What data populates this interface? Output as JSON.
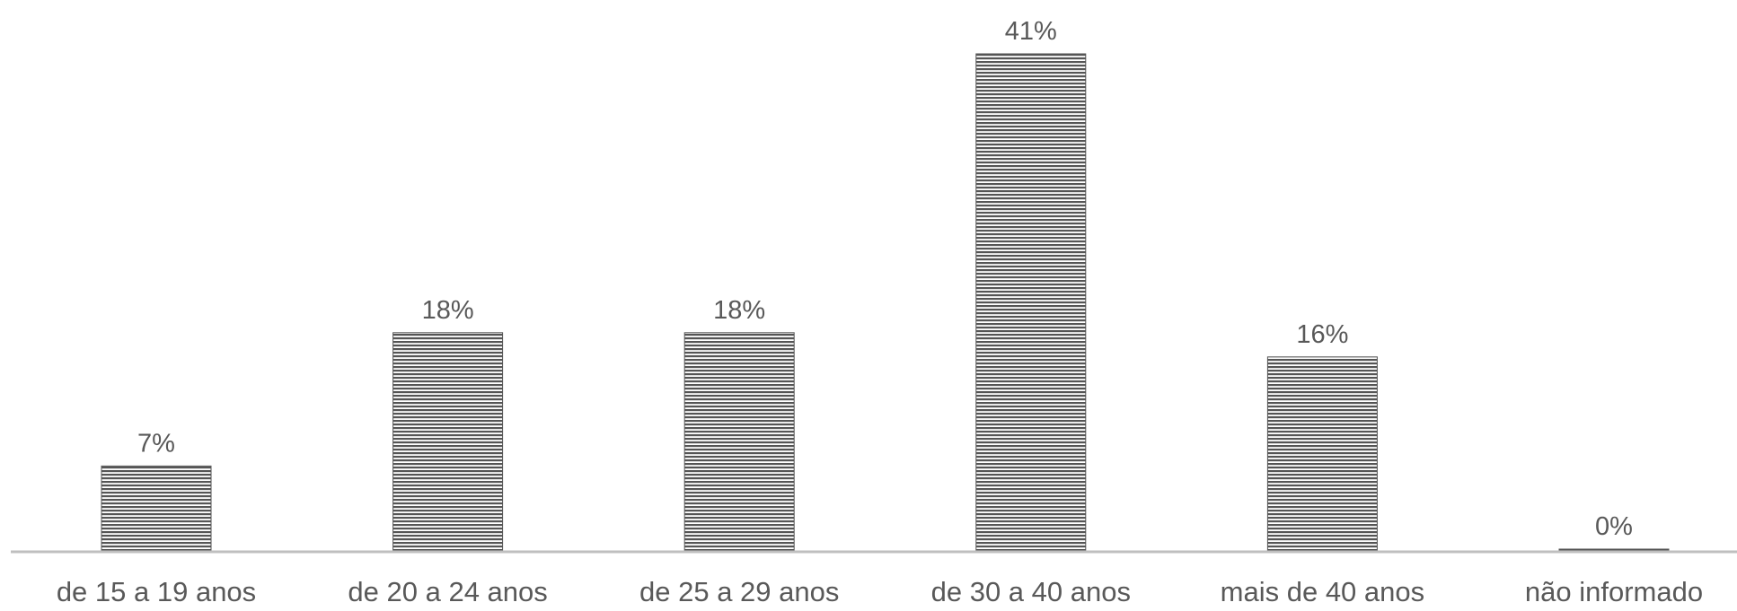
{
  "chart_data": {
    "type": "bar",
    "categories": [
      "de 15 a 19 anos",
      "de 20 a 24 anos",
      "de 25 a 29 anos",
      "de 30 a 40 anos",
      "mais de 40 anos",
      "não informado"
    ],
    "values": [
      7,
      18,
      18,
      41,
      16,
      0
    ],
    "unit": "%",
    "ylim": [
      0,
      41
    ],
    "grid": false,
    "legend": "none",
    "colors": {
      "bar_fill": "#ffffff",
      "bar_stripe": "#555555",
      "axis": "#bfbfbf",
      "label_text": "#595959"
    },
    "bar_pattern": "horizontal-stripes"
  }
}
